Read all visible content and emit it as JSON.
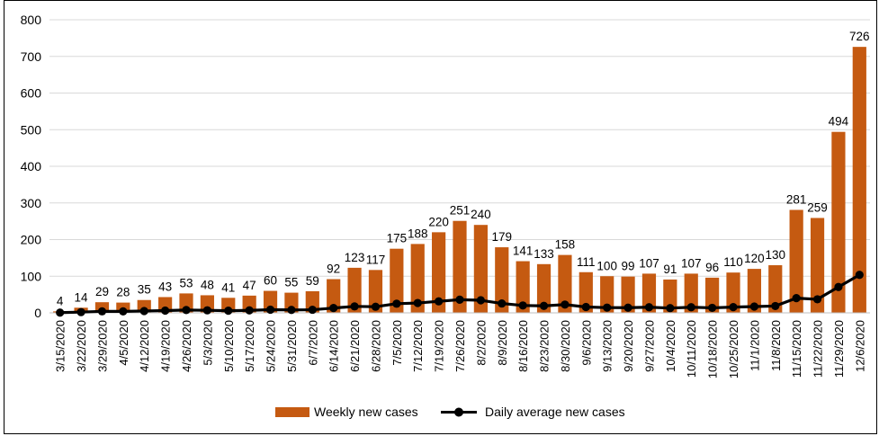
{
  "chart_data": {
    "type": "bar",
    "title": "",
    "xlabel": "",
    "ylabel": "",
    "ylim": [
      0,
      800
    ],
    "yticks": [
      0,
      100,
      200,
      300,
      400,
      500,
      600,
      700,
      800
    ],
    "grid": true,
    "legend_position": "bottom",
    "categories": [
      "3/15/2020",
      "3/22/2020",
      "3/29/2020",
      "4/5/2020",
      "4/12/2020",
      "4/19/2020",
      "4/26/2020",
      "5/3/2020",
      "5/10/2020",
      "5/17/2020",
      "5/24/2020",
      "5/31/2020",
      "6/7/2020",
      "6/14/2020",
      "6/21/2020",
      "6/28/2020",
      "7/5/2020",
      "7/12/2020",
      "7/19/2020",
      "7/26/2020",
      "8/2/2020",
      "8/9/2020",
      "8/16/2020",
      "8/23/2020",
      "8/30/2020",
      "9/6/2020",
      "9/13/2020",
      "9/20/2020",
      "9/27/2020",
      "10/4/2020",
      "10/11/2020",
      "10/18/2020",
      "10/25/2020",
      "11/1/2020",
      "11/8/2020",
      "11/15/2020",
      "11/22/2020",
      "11/29/2020",
      "12/6/2020"
    ],
    "series": [
      {
        "name": "Weekly new cases",
        "kind": "bar",
        "color": "#C55A11",
        "values": [
          4,
          14,
          29,
          28,
          35,
          43,
          53,
          48,
          41,
          47,
          60,
          55,
          59,
          92,
          123,
          117,
          175,
          188,
          220,
          251,
          240,
          179,
          141,
          133,
          158,
          111,
          100,
          99,
          107,
          91,
          107,
          96,
          110,
          120,
          130,
          281,
          259,
          494,
          726
        ]
      },
      {
        "name": "Daily average new cases",
        "kind": "line",
        "color": "#000000",
        "values": [
          0.6,
          2,
          4.1,
          4,
          5,
          6.1,
          7.6,
          6.9,
          5.9,
          6.7,
          8.6,
          7.9,
          8.4,
          13.1,
          17.6,
          16.7,
          25,
          26.9,
          31.4,
          35.9,
          34.3,
          25.6,
          20.1,
          19,
          22.6,
          15.9,
          14.3,
          14.1,
          15.3,
          13,
          15.3,
          13.7,
          15.7,
          17.1,
          18.6,
          40.1,
          37,
          70.6,
          103.7
        ]
      }
    ]
  }
}
